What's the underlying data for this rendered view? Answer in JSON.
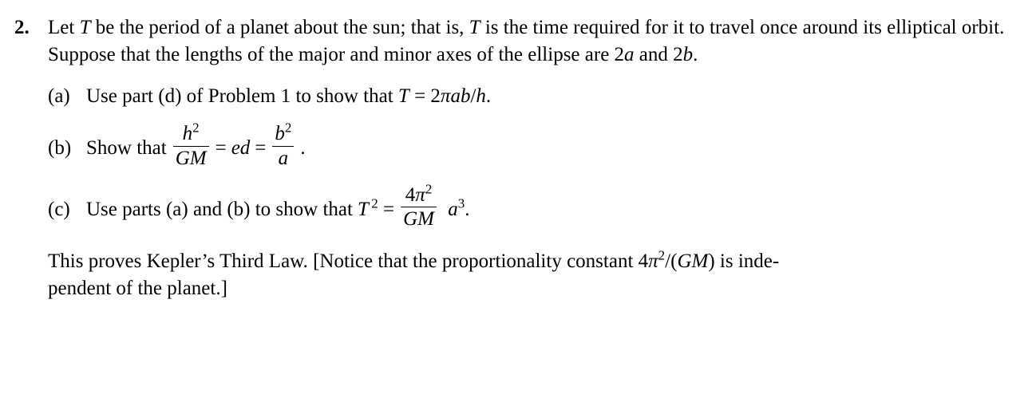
{
  "problem": {
    "number": "2.",
    "intro_html": "Let <span class='ital'>T</span> be the period of a planet about the sun; that is, <span class='ital'>T</span> is the time required for it to travel once around its elliptical orbit. Suppose that the lengths of the major and minor axes of the ellipse are 2<span class='ital'>a</span> and 2<span class='ital'>b</span>.",
    "parts": {
      "a": {
        "label": "(a)",
        "text_before": "Use part (d) of Problem 1 to show that ",
        "eq_html": "<span class='ital'>T</span> = 2<span class='ital'>πab</span>/<span class='ital'>h</span>.",
        "text_after": ""
      },
      "b": {
        "label": "(b)",
        "text_before": "Show that ",
        "frac1_num_html": "<span class='ital'>h</span><span class='sup'>2</span>",
        "frac1_den_html": "<span class='ital'>GM</span>",
        "mid1": " = ",
        "mid_term_html": "<span class='ital'>ed</span>",
        "mid2": " = ",
        "frac2_num_html": "<span class='ital'>b</span><span class='sup'>2</span>",
        "frac2_den_html": "<span class='ital'>a</span>",
        "tail": "."
      },
      "c": {
        "label": "(c)",
        "text_before": "Use parts (a) and (b) to show that ",
        "lhs_html": "<span class='ital'>T</span><span class='sup'>&thinsp;2</span> = ",
        "frac_num_html": "4<span class='ital'>π</span><span class='sup'>2</span>",
        "frac_den_html": "<span class='ital'>GM</span>",
        "rhs_html": "&nbsp;<span class='ital'>a</span><span class='sup'>3</span>."
      }
    },
    "closing_html": "This proves Kepler’s Third Law. [Notice that the proportionality constant 4<span class='ital'>π</span><span class='sup'>2</span>/(<span class='ital'>GM</span>) is inde-<br>pendent of the planet.]"
  }
}
